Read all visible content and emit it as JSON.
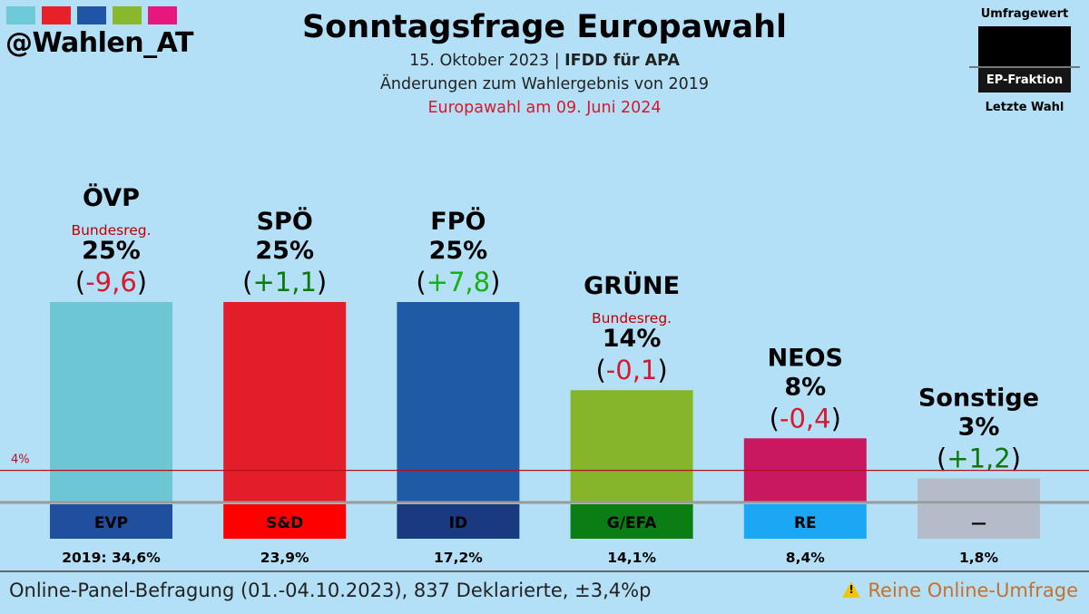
{
  "header": {
    "handle": "@Wahlen_AT",
    "title": "Sonntagsfrage Europawahl",
    "date_text": "15. Oktober 2023 | ",
    "institute": "IFDD für APA",
    "subtitle2": "Änderungen zum Wahlergebnis von 2019",
    "subtitle3": "Europawahl am 09. Juni 2024",
    "logo_colors": [
      "#6ecad6",
      "#e8202a",
      "#2055a5",
      "#8ab82c",
      "#e8177d"
    ]
  },
  "legend": {
    "top": "Umfragewert",
    "middle": "EP-Fraktion",
    "bottom": "Letzte Wahl"
  },
  "chart_data": {
    "type": "bar",
    "categories": [
      "ÖVP",
      "SPÖ",
      "FPÖ",
      "GRÜNE",
      "NEOS",
      "Sonstige"
    ],
    "values": [
      25,
      25,
      25,
      14,
      8,
      3
    ],
    "value_labels": [
      "25%",
      "25%",
      "25%",
      "14%",
      "8%",
      "3%"
    ],
    "changes": [
      "-9,6",
      "+1,1",
      "+7,8",
      "-0,1",
      "-0,4",
      "+1,2"
    ],
    "change_colors": [
      "#d8182c",
      "#0a7a0a",
      "#17b017",
      "#d8182c",
      "#d8182c",
      "#0a7a0a"
    ],
    "government": [
      "Bundesreg.",
      "",
      "",
      "Bundesreg.",
      "",
      ""
    ],
    "ep_groups": [
      "EVP",
      "S&D",
      "ID",
      "G/EFA",
      "RE",
      "—"
    ],
    "ep_group_colors": [
      "#1f4f9e",
      "#ff0000",
      "#193a7e",
      "#0a7d14",
      "#1aa8f5",
      "#b3bcc8"
    ],
    "ep_group_text_colors": [
      "#000",
      "#000",
      "#000",
      "#000",
      "#000",
      "#000"
    ],
    "bar_colors": [
      "#6dc6d3",
      "#e31e2a",
      "#1f5aa6",
      "#86b52b",
      "#c9185f",
      "#b3bcc8"
    ],
    "previous_2019": [
      34.6,
      23.9,
      17.2,
      14.1,
      8.4,
      1.8
    ],
    "previous_labels": [
      "2019: 34,6%",
      "23,9%",
      "17,2%",
      "14,1%",
      "8,4%",
      "1,8%"
    ],
    "threshold": 4,
    "threshold_label": "4%",
    "ylim": [
      0,
      25
    ]
  },
  "footer": {
    "left": "Online-Panel-Befragung (01.-04.10.2023), 837 Deklarierte, ±3,4%p",
    "right": "Reine Online-Umfrage"
  }
}
